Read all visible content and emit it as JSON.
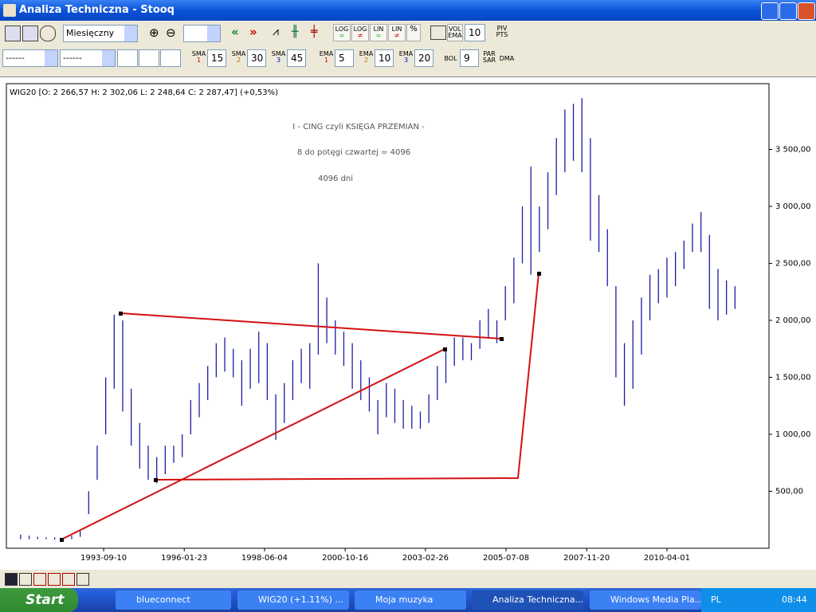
{
  "window": {
    "title": "Analiza Techniczna - Stooq"
  },
  "toolbar1": {
    "period": "Miesięczny",
    "log1": "LOG",
    "log2": "LOG",
    "lin1": "LIN",
    "lin2": "LIN",
    "pct": "%",
    "vol": "VOL",
    "ema": "EMA",
    "vol_period": "10",
    "piv": "PIV",
    "pts": "PTS"
  },
  "toolbar2": {
    "combo1": "------",
    "combo2": "------",
    "indicators": [
      {
        "name": "SMA",
        "index": "1",
        "period": "15"
      },
      {
        "name": "SMA",
        "index": "2",
        "period": "30"
      },
      {
        "name": "SMA",
        "index": "3",
        "period": "45"
      },
      {
        "name": "EMA",
        "index": "1",
        "period": "5"
      },
      {
        "name": "EMA",
        "index": "2",
        "period": "10"
      },
      {
        "name": "EMA",
        "index": "3",
        "period": "20"
      }
    ],
    "bol": "BOL",
    "bol_period": "9",
    "par": "PAR",
    "sar": "SAR",
    "dma": "DMA"
  },
  "chart_data": {
    "type": "ohlc",
    "title": "WIG20 [O: 2 266,57  H: 2 302,06  L: 2 248,64  C: 2 287,47] (+0,53%)",
    "annotations": [
      "I - CING  czyli KSIĘGA PRZEMIAN -",
      "8 do potęgi czwartej = 4096",
      "4096 dni"
    ],
    "color": "#1c1ca8",
    "grid": false,
    "x": [
      1991.25,
      1991.5,
      1991.75,
      1992.0,
      1992.25,
      1992.5,
      1992.75,
      1993.0,
      1993.25,
      1993.5,
      1993.75,
      1994.0,
      1994.25,
      1994.5,
      1994.75,
      1995.0,
      1995.25,
      1995.5,
      1995.75,
      1996.0,
      1996.25,
      1996.5,
      1996.75,
      1997.0,
      1997.25,
      1997.5,
      1997.75,
      1998.0,
      1998.25,
      1998.5,
      1998.75,
      1999.0,
      1999.25,
      1999.5,
      1999.75,
      2000.0,
      2000.25,
      2000.5,
      2000.75,
      2001.0,
      2001.25,
      2001.5,
      2001.75,
      2002.0,
      2002.25,
      2002.5,
      2002.75,
      2003.0,
      2003.25,
      2003.5,
      2003.75,
      2004.0,
      2004.25,
      2004.5,
      2004.75,
      2005.0,
      2005.25,
      2005.5,
      2005.75,
      2006.0,
      2006.25,
      2006.5,
      2006.75,
      2007.0,
      2007.25,
      2007.5,
      2007.75,
      2008.0,
      2008.25,
      2008.5,
      2008.75,
      2009.0,
      2009.25,
      2009.5,
      2009.75,
      2010.0,
      2010.25,
      2010.5,
      2010.75,
      2011.0,
      2011.25,
      2011.5,
      2011.75,
      2012.0,
      2012.25
    ],
    "high": [
      120,
      110,
      100,
      95,
      95,
      90,
      110,
      150,
      500,
      900,
      1500,
      2050,
      2000,
      1400,
      1100,
      900,
      800,
      900,
      900,
      1000,
      1300,
      1450,
      1600,
      1800,
      1850,
      1750,
      1650,
      1750,
      1900,
      1800,
      1350,
      1450,
      1650,
      1750,
      1800,
      2500,
      2200,
      2000,
      1900,
      1800,
      1650,
      1500,
      1300,
      1450,
      1400,
      1300,
      1250,
      1200,
      1350,
      1600,
      1750,
      1850,
      1850,
      1800,
      2000,
      2100,
      2000,
      2300,
      2550,
      3000,
      3350,
      3000,
      3300,
      3600,
      3850,
      3900,
      3950,
      3600,
      3100,
      2800,
      2300,
      1800,
      2000,
      2200,
      2400,
      2450,
      2550,
      2600,
      2700,
      2850,
      2950,
      2750,
      2450,
      2350,
      2300
    ],
    "low": [
      80,
      80,
      80,
      80,
      75,
      65,
      80,
      100,
      300,
      600,
      1000,
      1400,
      1200,
      900,
      700,
      600,
      570,
      650,
      750,
      800,
      1000,
      1150,
      1300,
      1500,
      1550,
      1500,
      1250,
      1400,
      1450,
      1300,
      950,
      1100,
      1300,
      1450,
      1400,
      1700,
      1800,
      1700,
      1600,
      1400,
      1300,
      1200,
      1000,
      1150,
      1100,
      1050,
      1050,
      1050,
      1100,
      1300,
      1450,
      1600,
      1650,
      1650,
      1750,
      1850,
      1800,
      2000,
      2150,
      2500,
      2400,
      2600,
      2800,
      3100,
      3300,
      3400,
      3300,
      2700,
      2600,
      2300,
      1500,
      1250,
      1400,
      1700,
      2000,
      2150,
      2200,
      2300,
      2450,
      2600,
      2600,
      2100,
      2000,
      2050,
      2100
    ],
    "xlim": [
      1990.83,
      2013.25
    ],
    "ylim": [
      0,
      4077
    ],
    "xticks": [
      {
        "value": 1993.69,
        "label": "1993-09-10"
      },
      {
        "value": 1996.06,
        "label": "1996-01-23"
      },
      {
        "value": 1998.42,
        "label": "1998-06-04"
      },
      {
        "value": 2000.79,
        "label": "2000-10-16"
      },
      {
        "value": 2003.15,
        "label": "2003-02-26"
      },
      {
        "value": 2005.52,
        "label": "2005-07-08"
      },
      {
        "value": 2007.89,
        "label": "2007-11-20"
      },
      {
        "value": 2010.25,
        "label": "2010-04-01"
      }
    ],
    "yticks": [
      {
        "value": 500,
        "label": "500,00"
      },
      {
        "value": 1000,
        "label": "1 000,00"
      },
      {
        "value": 1500,
        "label": "1 500,00"
      },
      {
        "value": 2000,
        "label": "2 000,00"
      },
      {
        "value": 2500,
        "label": "2 500,00"
      },
      {
        "value": 3000,
        "label": "3 000,00"
      },
      {
        "value": 3500,
        "label": "3 500,00"
      }
    ]
  },
  "taskbar": {
    "start": "Start",
    "items": [
      "blueconnect",
      "WIG20 (+1.11%) ...",
      "Moja muzyka",
      "Analiza Techniczna...",
      "Windows Media Pla..."
    ],
    "lang": "PL",
    "clock": "08:44"
  }
}
